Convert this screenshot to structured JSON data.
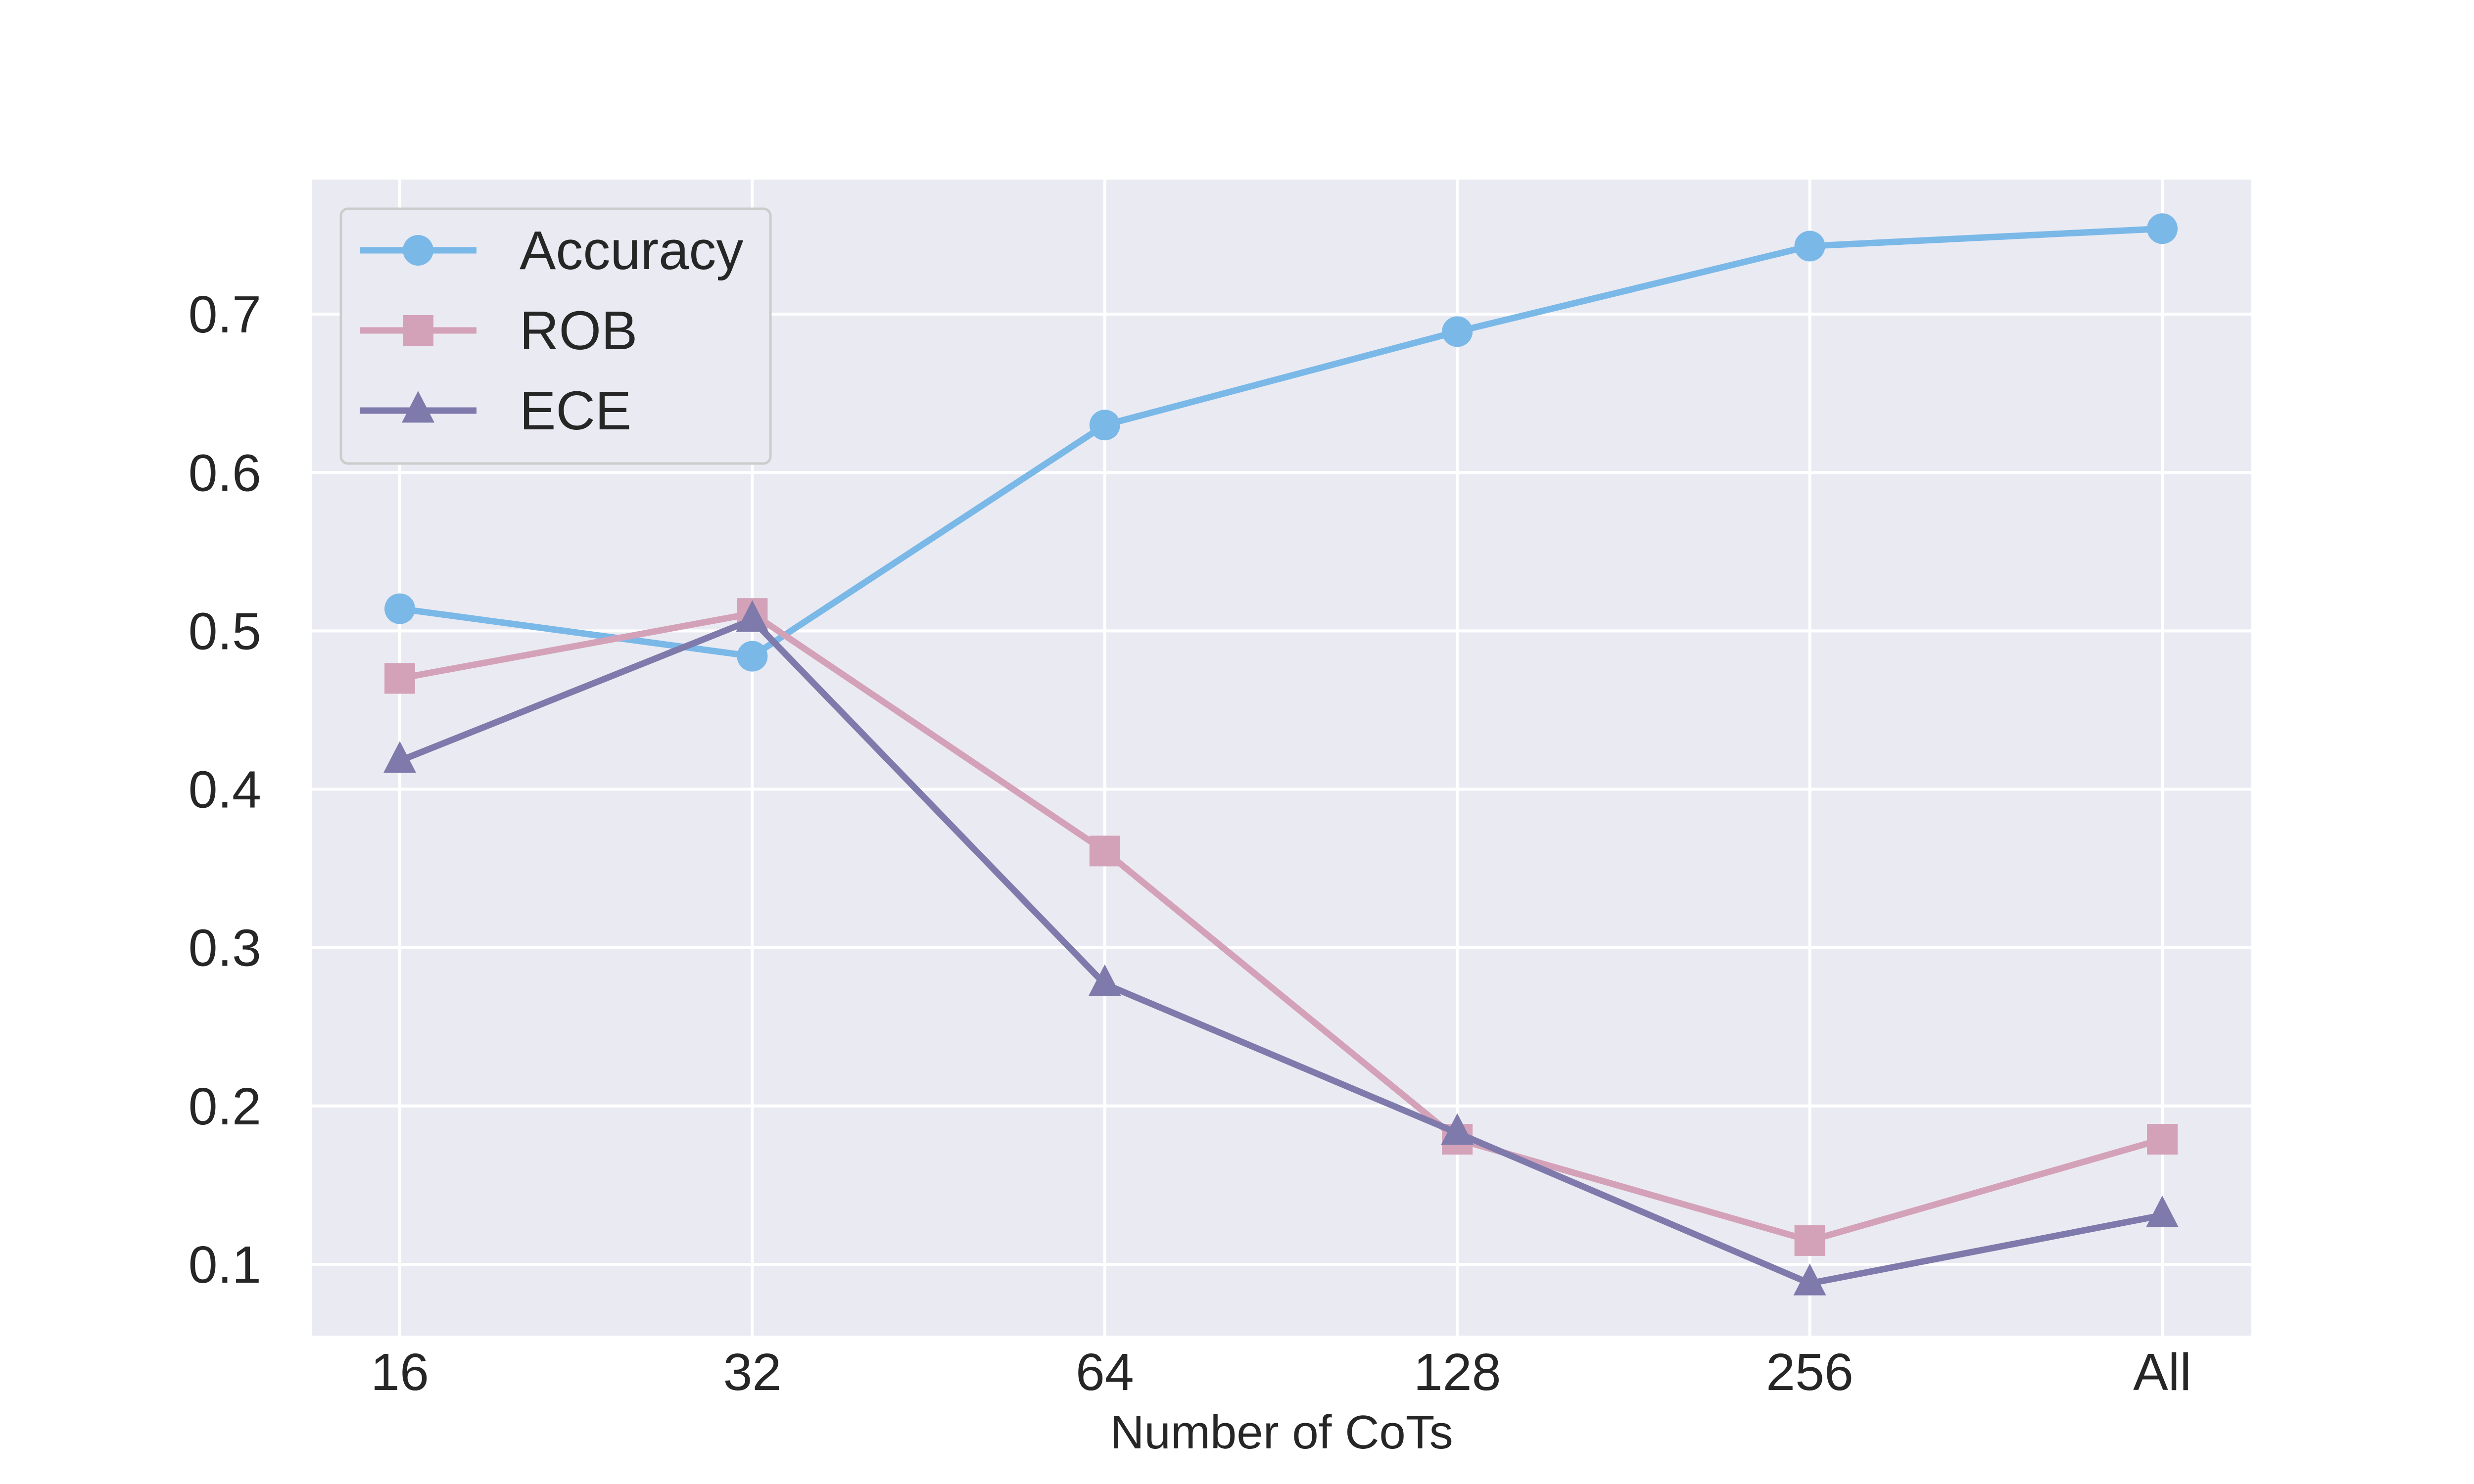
{
  "chart_data": {
    "type": "line",
    "categories": [
      "16",
      "32",
      "64",
      "128",
      "256",
      "All"
    ],
    "xlabel": "Number of CoTs",
    "ylabel": "",
    "ylim": [
      0.055,
      0.785
    ],
    "yticks": [
      "0.1",
      "0.2",
      "0.3",
      "0.4",
      "0.5",
      "0.6",
      "0.7"
    ],
    "grid": true,
    "legend_position": "top-left",
    "background_color": "#eaeaf2",
    "series": [
      {
        "name": "Accuracy",
        "marker": "circle",
        "color": "#7ab8e8",
        "values": [
          0.514,
          0.484,
          0.63,
          0.689,
          0.743,
          0.754
        ]
      },
      {
        "name": "ROB",
        "marker": "square",
        "color": "#d4a2b8",
        "values": [
          0.47,
          0.511,
          0.361,
          0.179,
          0.115,
          0.179
        ]
      },
      {
        "name": "ECE",
        "marker": "triangle",
        "color": "#7e7aab",
        "values": [
          0.418,
          0.507,
          0.277,
          0.183,
          0.088,
          0.131
        ]
      }
    ]
  }
}
